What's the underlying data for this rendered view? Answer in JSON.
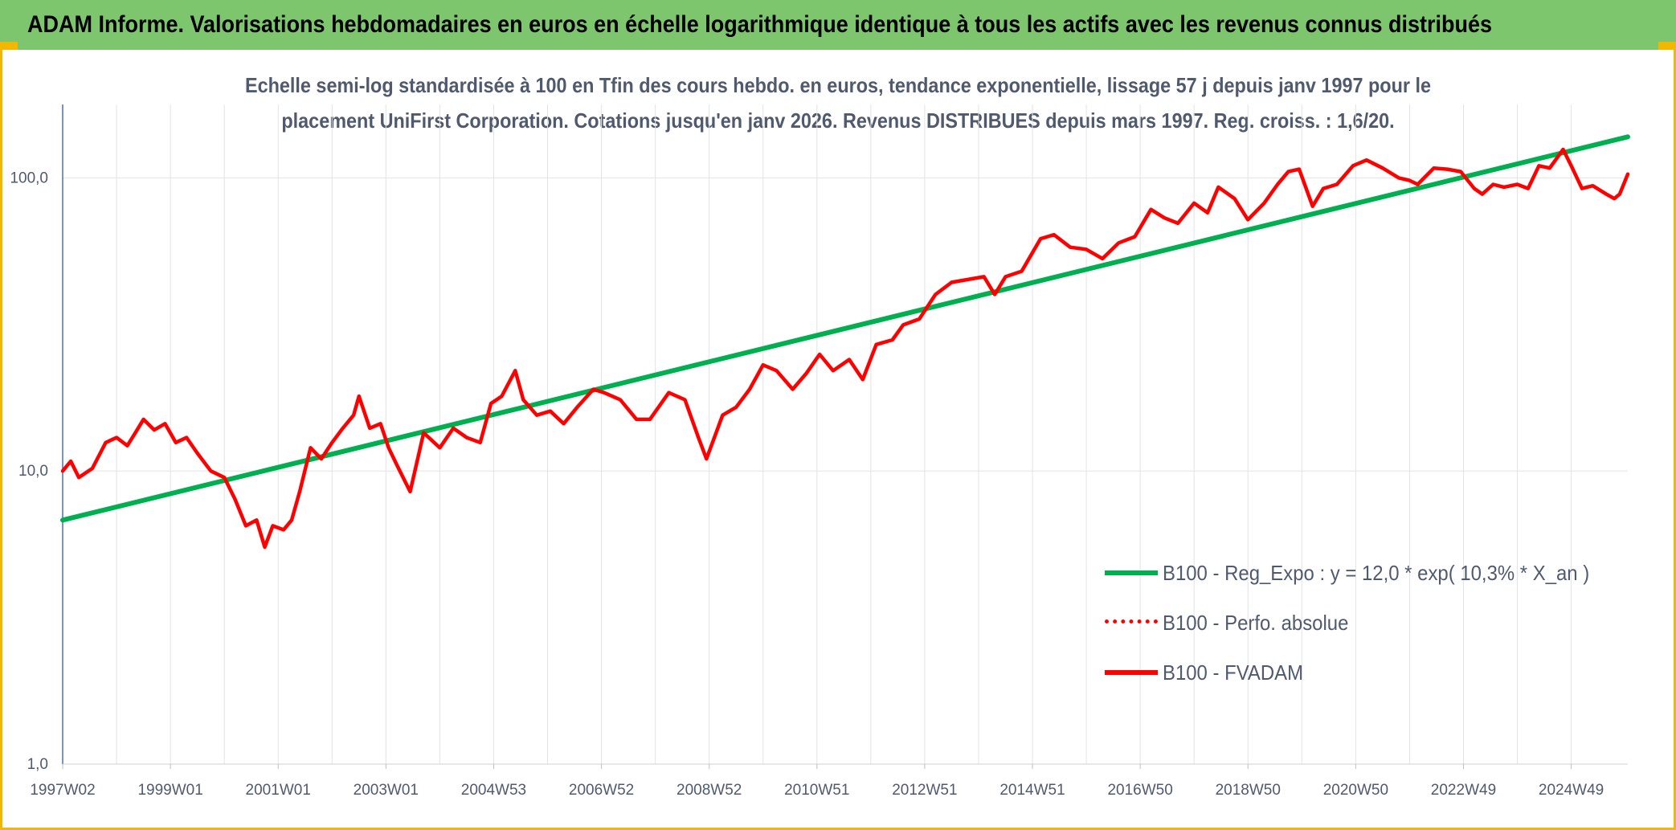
{
  "header": {
    "title": "ADAM Informe. Valorisations hebdomadaires en euros en échelle logarithmique identique à tous les actifs avec les revenus connus distribués"
  },
  "subtitle": {
    "line1": "Echelle semi-log standardisée à 100 en Tfin des cours hebdo. en euros, tendance exponentielle, lissage 57 j depuis janv 1997 pour le",
    "line2": "placement UniFirst Corporation. Cotations jusqu'en janv 2026. Revenus DISTRIBUES depuis mars 1997. Reg. croiss. : 1,6/20."
  },
  "colors": {
    "header_bg": "#7dc66e",
    "accent": "#f2b800",
    "trend": "#00b050",
    "fvadam": "#ff0000",
    "text": "#505a6e"
  },
  "chart_data": {
    "type": "line",
    "y_scale": "log",
    "ylim": [
      1,
      180
    ],
    "y_ticks": [
      1,
      10,
      100
    ],
    "y_tick_labels": [
      "1,0",
      "10,0",
      "100,0"
    ],
    "x_range": [
      1997.0,
      2026.05
    ],
    "x_tick_labels": [
      "1997W02",
      "1999W01",
      "2001W01",
      "2003W01",
      "2004W53",
      "2006W52",
      "2008W52",
      "2010W51",
      "2012W51",
      "2014W51",
      "2016W50",
      "2018W50",
      "2020W50",
      "2022W49",
      "2024W49"
    ],
    "x_tick_years": [
      1997.0,
      1999.0,
      2001.0,
      2003.0,
      2005.0,
      2007.0,
      2009.0,
      2011.0,
      2013.0,
      2015.0,
      2017.0,
      2019.0,
      2021.0,
      2023.0,
      2025.0
    ],
    "grid": "vertical and horizontal",
    "legend_position": "bottom-right",
    "series": [
      {
        "name": "B100 - Reg_Expo : y = 12,0 * exp( 10,3% *  X_an )",
        "style": "solid-green",
        "x": [
          1997.0,
          2026.05
        ],
        "y": [
          6.8,
          138
        ]
      },
      {
        "name": "B100 - Perfo. absolue",
        "style": "dotted-red",
        "x": [],
        "y": []
      },
      {
        "name": "B100 - FVADAM",
        "style": "solid-red",
        "x": [
          1997.0,
          1997.15,
          1997.3,
          1997.55,
          1997.8,
          1998.0,
          1998.2,
          1998.35,
          1998.5,
          1998.7,
          1998.9,
          1999.1,
          1999.3,
          1999.5,
          1999.75,
          2000.0,
          2000.2,
          2000.4,
          2000.6,
          2000.75,
          2000.9,
          2001.1,
          2001.25,
          2001.4,
          2001.6,
          2001.8,
          2002.0,
          2002.2,
          2002.4,
          2002.5,
          2002.7,
          2002.9,
          2003.05,
          2003.2,
          2003.45,
          2003.7,
          2004.0,
          2004.25,
          2004.5,
          2004.75,
          2004.95,
          2005.15,
          2005.4,
          2005.55,
          2005.8,
          2006.05,
          2006.3,
          2006.55,
          2006.85,
          2007.05,
          2007.35,
          2007.65,
          2007.9,
          2008.25,
          2008.55,
          2008.8,
          2008.95,
          2009.25,
          2009.5,
          2009.75,
          2010.0,
          2010.25,
          2010.55,
          2010.8,
          2011.05,
          2011.3,
          2011.6,
          2011.85,
          2012.1,
          2012.4,
          2012.6,
          2012.9,
          2013.2,
          2013.5,
          2013.8,
          2014.1,
          2014.3,
          2014.5,
          2014.8,
          2015.15,
          2015.4,
          2015.7,
          2016.0,
          2016.3,
          2016.6,
          2016.9,
          2017.2,
          2017.45,
          2017.7,
          2018.0,
          2018.25,
          2018.45,
          2018.75,
          2019.0,
          2019.3,
          2019.55,
          2019.75,
          2019.95,
          2020.2,
          2020.4,
          2020.65,
          2020.95,
          2021.2,
          2021.5,
          2021.8,
          2022.0,
          2022.15,
          2022.45,
          2022.7,
          2022.95,
          2023.2,
          2023.35,
          2023.55,
          2023.75,
          2024.0,
          2024.2,
          2024.4,
          2024.6,
          2024.85,
          2025.0,
          2025.2,
          2025.4,
          2025.65,
          2025.8,
          2025.9,
          2026.05
        ],
        "y": [
          10.0,
          10.8,
          9.5,
          10.2,
          12.5,
          13.0,
          12.2,
          13.5,
          15.0,
          13.8,
          14.5,
          12.5,
          13.0,
          11.5,
          10.0,
          9.5,
          8.0,
          6.5,
          6.8,
          5.5,
          6.5,
          6.3,
          6.8,
          8.5,
          12.0,
          11.0,
          12.5,
          14.0,
          15.5,
          18.0,
          14.0,
          14.5,
          12.0,
          10.5,
          8.5,
          13.5,
          12.0,
          14.0,
          13.0,
          12.5,
          17.0,
          18.0,
          22.0,
          17.5,
          15.5,
          16.0,
          14.5,
          16.5,
          19.0,
          18.5,
          17.5,
          15.0,
          15.0,
          18.5,
          17.5,
          13.0,
          11.0,
          15.5,
          16.5,
          19.0,
          23.0,
          22.0,
          19.0,
          21.5,
          25.0,
          22.0,
          24.0,
          20.5,
          27.0,
          28.0,
          31.5,
          33.0,
          40.0,
          44.0,
          45.0,
          46.0,
          40.0,
          46.0,
          48.0,
          62.0,
          64.0,
          58.0,
          57.0,
          53.0,
          60.0,
          63.0,
          78.0,
          73.0,
          70.0,
          82.0,
          76.0,
          93.0,
          85.0,
          72.0,
          82.0,
          95.0,
          105.0,
          107.0,
          80.0,
          92.0,
          95.0,
          110.0,
          115.0,
          108.0,
          100.0,
          98.0,
          95.0,
          108.0,
          107.0,
          105.0,
          92.0,
          88.0,
          95.0,
          93.0,
          95.0,
          92.0,
          110.0,
          108.0,
          125.0,
          110.0,
          92.0,
          94.0,
          88.0,
          85.0,
          88.0,
          103.0
        ]
      }
    ]
  }
}
